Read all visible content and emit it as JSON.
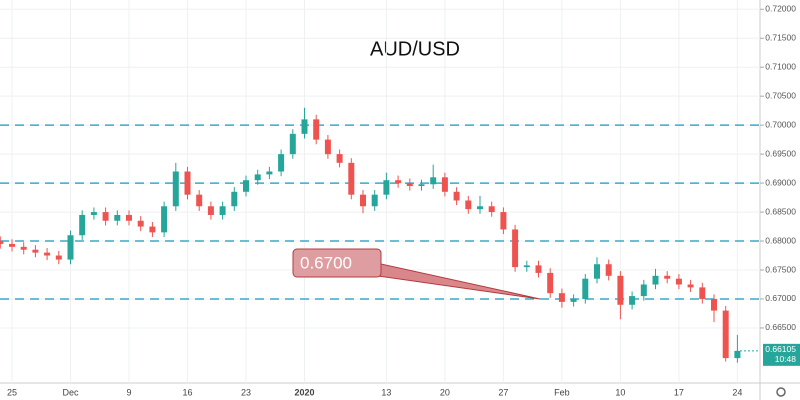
{
  "chart_data": {
    "type": "candlestick",
    "title": "AUD/USD",
    "categories": [
      null,
      "25",
      null,
      null,
      null,
      null,
      "Dec",
      null,
      null,
      null,
      null,
      "9",
      null,
      null,
      null,
      null,
      "16",
      null,
      null,
      null,
      null,
      "23",
      null,
      null,
      null,
      null,
      "2020",
      null,
      null,
      null,
      null,
      null,
      null,
      "13",
      null,
      null,
      null,
      null,
      "20",
      null,
      null,
      null,
      null,
      "27",
      null,
      null,
      null,
      null,
      "Feb",
      null,
      null,
      null,
      null,
      "10",
      null,
      null,
      null,
      null,
      "17",
      null,
      null,
      null,
      null,
      "24"
    ],
    "open": [
      0.68,
      0.6795,
      0.679,
      0.6785,
      0.678,
      0.6775,
      0.6768,
      0.681,
      0.6845,
      0.685,
      0.6835,
      0.6845,
      0.6835,
      0.6825,
      0.6815,
      0.686,
      0.692,
      0.688,
      0.686,
      0.6845,
      0.686,
      0.6885,
      0.6905,
      0.6915,
      0.692,
      0.695,
      0.6985,
      0.701,
      0.6975,
      0.695,
      0.6935,
      0.688,
      0.686,
      0.688,
      0.6905,
      0.69,
      0.6895,
      0.6898,
      0.691,
      0.6885,
      0.687,
      0.6855,
      0.686,
      0.685,
      0.682,
      0.6755,
      0.6758,
      0.6745,
      0.671,
      0.6695,
      0.67,
      0.6735,
      0.676,
      0.674,
      0.669,
      0.6705,
      0.6725,
      0.674,
      0.6735,
      0.6725,
      0.672,
      0.67,
      0.668,
      0.6598
    ],
    "high": [
      0.6808,
      0.6803,
      0.6798,
      0.6793,
      0.6788,
      0.6783,
      0.6818,
      0.6853,
      0.6858,
      0.6858,
      0.6853,
      0.6853,
      0.6843,
      0.6833,
      0.6868,
      0.6935,
      0.6928,
      0.6888,
      0.6868,
      0.6868,
      0.6893,
      0.6913,
      0.6923,
      0.6928,
      0.6958,
      0.6993,
      0.703,
      0.7018,
      0.6983,
      0.6958,
      0.6943,
      0.6888,
      0.6888,
      0.6918,
      0.6913,
      0.6908,
      0.6906,
      0.6932,
      0.6918,
      0.6893,
      0.6878,
      0.6878,
      0.6868,
      0.6858,
      0.6828,
      0.6766,
      0.6766,
      0.6753,
      0.6718,
      0.6708,
      0.6743,
      0.6772,
      0.6768,
      0.6748,
      0.6713,
      0.6733,
      0.6752,
      0.6748,
      0.6743,
      0.6733,
      0.6728,
      0.6708,
      0.6688,
      0.6638
    ],
    "low": [
      0.6787,
      0.6782,
      0.6777,
      0.6772,
      0.6767,
      0.676,
      0.676,
      0.6802,
      0.6837,
      0.6827,
      0.6827,
      0.6827,
      0.6817,
      0.6807,
      0.6807,
      0.6852,
      0.6872,
      0.6852,
      0.6837,
      0.6837,
      0.6852,
      0.6877,
      0.6897,
      0.6907,
      0.6912,
      0.6942,
      0.6977,
      0.6967,
      0.6942,
      0.6927,
      0.6872,
      0.6848,
      0.6852,
      0.6872,
      0.6892,
      0.6887,
      0.6887,
      0.689,
      0.6877,
      0.6862,
      0.6847,
      0.6847,
      0.6842,
      0.6812,
      0.6747,
      0.6747,
      0.6737,
      0.6702,
      0.6685,
      0.6687,
      0.6692,
      0.6727,
      0.6732,
      0.6665,
      0.6682,
      0.6697,
      0.6717,
      0.6727,
      0.6717,
      0.6712,
      0.6692,
      0.666,
      0.6592,
      0.659
    ],
    "close": [
      0.6795,
      0.679,
      0.6785,
      0.678,
      0.6775,
      0.6768,
      0.681,
      0.6845,
      0.685,
      0.6835,
      0.6845,
      0.6835,
      0.6825,
      0.6815,
      0.686,
      0.692,
      0.688,
      0.686,
      0.6845,
      0.686,
      0.6885,
      0.6905,
      0.6915,
      0.692,
      0.695,
      0.6985,
      0.701,
      0.6975,
      0.695,
      0.6935,
      0.688,
      0.686,
      0.688,
      0.6905,
      0.69,
      0.6895,
      0.6898,
      0.691,
      0.6885,
      0.687,
      0.6855,
      0.686,
      0.685,
      0.682,
      0.6755,
      0.6758,
      0.6745,
      0.671,
      0.6695,
      0.67,
      0.6735,
      0.676,
      0.674,
      0.669,
      0.6705,
      0.6725,
      0.674,
      0.6735,
      0.6725,
      0.672,
      0.67,
      0.668,
      0.6598,
      0.66105
    ],
    "up_color": "#26a69a",
    "down_color": "#ef5350",
    "ylim": [
      0.6555,
      0.7216
    ],
    "yticks": [
      {
        "value": 0.72,
        "label": "0.72000"
      },
      {
        "value": 0.715,
        "label": "0.71500"
      },
      {
        "value": 0.71,
        "label": "0.71000"
      },
      {
        "value": 0.705,
        "label": "0.70500"
      },
      {
        "value": 0.7,
        "label": "0.70000"
      },
      {
        "value": 0.695,
        "label": "0.69500"
      },
      {
        "value": 0.69,
        "label": "0.69000"
      },
      {
        "value": 0.685,
        "label": "0.68500"
      },
      {
        "value": 0.68,
        "label": "0.68000"
      },
      {
        "value": 0.675,
        "label": "0.67500"
      },
      {
        "value": 0.67,
        "label": "0.67000"
      },
      {
        "value": 0.665,
        "label": "0.66500"
      }
    ],
    "levels": [
      0.7,
      0.69,
      0.68,
      0.67
    ],
    "level_color": "#3aa9c9",
    "annotation": {
      "text": "0.6700",
      "value": 0.67
    },
    "current_price": {
      "value": 0.66105,
      "label": "0.66105"
    },
    "countdown": "10:48",
    "grid": true
  }
}
